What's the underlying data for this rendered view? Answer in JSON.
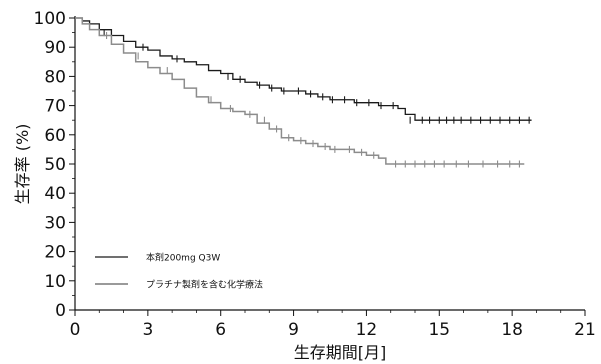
{
  "chart_data": {
    "type": "line",
    "xlabel": "生存期間[月]",
    "ylabel": "生存率 (%)",
    "xlim": [
      0,
      21
    ],
    "ylim": [
      0,
      100
    ],
    "x_ticks": [
      0,
      3,
      6,
      9,
      12,
      15,
      18,
      21
    ],
    "y_ticks": [
      0,
      10,
      20,
      30,
      40,
      50,
      60,
      70,
      80,
      90,
      100
    ],
    "grid": false,
    "legend_position": "bottom-left",
    "series": [
      {
        "name": "本剤200mg Q3W",
        "color": "#1a1a1a",
        "style": "solid",
        "x": [
          0,
          0.3,
          0.6,
          1.0,
          1.5,
          2.0,
          2.5,
          3.0,
          3.5,
          4.0,
          4.5,
          5.0,
          5.5,
          6.0,
          6.5,
          7.0,
          7.5,
          8.0,
          8.5,
          9.0,
          9.5,
          10.0,
          10.5,
          11.0,
          11.5,
          12.0,
          12.5,
          13.0,
          13.3,
          13.6,
          14.0,
          15.0,
          16.0,
          17.0,
          18.0,
          18.8
        ],
        "y": [
          100,
          99,
          98,
          96,
          94,
          92,
          90,
          89,
          87,
          86,
          85,
          84,
          82,
          81,
          79,
          78,
          77,
          76,
          75,
          75,
          74,
          73,
          72,
          72,
          71,
          71,
          70,
          70,
          69,
          67,
          65,
          65,
          65,
          65,
          65,
          65
        ],
        "censor_x": [
          1.2,
          2.8,
          4.2,
          6.3,
          6.8,
          7.6,
          8.1,
          8.6,
          9.2,
          9.7,
          10.2,
          10.6,
          11.1,
          11.6,
          12.1,
          12.6,
          13.1,
          13.8,
          14.3,
          14.6,
          15.0,
          15.3,
          15.6,
          15.9,
          16.3,
          16.7,
          17.1,
          17.5,
          17.9,
          18.3,
          18.7
        ],
        "censor_y": [
          95,
          90,
          86,
          80,
          79,
          77,
          76,
          75,
          75,
          74,
          73,
          72,
          72,
          71,
          71,
          70,
          70,
          65,
          65,
          65,
          65,
          65,
          65,
          65,
          65,
          65,
          65,
          65,
          65,
          65,
          65
        ]
      },
      {
        "name": "プラチナ製剤を含む化学療法",
        "color": "#8c8c8c",
        "style": "solid",
        "x": [
          0,
          0.3,
          0.6,
          1.0,
          1.5,
          2.0,
          2.5,
          3.0,
          3.5,
          4.0,
          4.5,
          5.0,
          5.5,
          6.0,
          6.5,
          7.0,
          7.5,
          8.0,
          8.5,
          9.0,
          9.5,
          10.0,
          10.5,
          11.0,
          11.5,
          12.0,
          12.5,
          12.8,
          13.0,
          13.5,
          14.0,
          15.0,
          16.0,
          17.0,
          18.0,
          18.5
        ],
        "y": [
          100,
          98,
          96,
          94,
          91,
          88,
          85,
          83,
          81,
          79,
          76,
          73,
          71,
          69,
          68,
          67,
          64,
          62,
          59,
          58,
          57,
          56,
          55,
          55,
          54,
          53,
          52,
          50,
          50,
          50,
          50,
          50,
          50,
          50,
          50,
          50
        ],
        "censor_x": [
          1.3,
          2.6,
          3.8,
          5.6,
          6.4,
          7.2,
          7.8,
          8.3,
          8.8,
          9.3,
          9.8,
          10.3,
          10.7,
          11.3,
          11.8,
          12.3,
          13.2,
          13.6,
          14.0,
          14.4,
          14.8,
          15.2,
          15.7,
          16.2,
          16.8,
          17.4,
          17.9,
          18.3
        ],
        "censor_y": [
          94,
          87,
          82,
          72,
          69,
          67,
          65,
          62,
          59,
          58,
          57,
          56,
          55,
          55,
          54,
          53,
          50,
          50,
          50,
          50,
          50,
          50,
          50,
          50,
          50,
          50,
          50,
          50
        ]
      }
    ]
  }
}
